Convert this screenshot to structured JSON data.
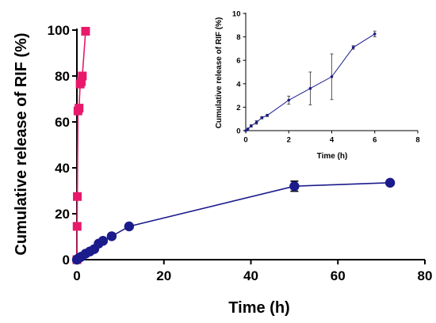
{
  "chart_data": [
    {
      "type": "scatter",
      "xlabel": "Time (h)",
      "ylabel": "Cumulative release of RIF (%)",
      "xlim": [
        0,
        80
      ],
      "ylim": [
        0,
        100
      ],
      "x_ticks": [
        0,
        20,
        40,
        60,
        80
      ],
      "y_ticks": [
        0,
        20,
        40,
        60,
        80,
        100
      ],
      "grid": false,
      "colors": {
        "pink": "#e8196b",
        "navy": "#1b1b8c"
      },
      "series": [
        {
          "marker": "square",
          "color": "#e8196b",
          "points": [
            {
              "x": 0,
              "y": 0
            },
            {
              "x": 0.05,
              "y": 14.5
            },
            {
              "x": 0.1,
              "y": 27.5
            },
            {
              "x": 0.25,
              "y": 64.8
            },
            {
              "x": 0.5,
              "y": 66
            },
            {
              "x": 0.75,
              "y": 76.5
            },
            {
              "x": 1.0,
              "y": 77.5
            },
            {
              "x": 1.25,
              "y": 80
            },
            {
              "x": 2.0,
              "y": 99.5
            }
          ]
        },
        {
          "marker": "circle",
          "color": "#1b1b8c",
          "points": [
            {
              "x": 0,
              "y": 0,
              "err": 0
            },
            {
              "x": 0.25,
              "y": 0.4,
              "err": 0
            },
            {
              "x": 0.5,
              "y": 0.7,
              "err": 0
            },
            {
              "x": 1,
              "y": 1.3,
              "err": 0
            },
            {
              "x": 2,
              "y": 2.6,
              "err": 0
            },
            {
              "x": 3,
              "y": 3.6,
              "err": 0
            },
            {
              "x": 4,
              "y": 4.6,
              "err": 0
            },
            {
              "x": 5,
              "y": 7.0,
              "err": 0
            },
            {
              "x": 6,
              "y": 8.2,
              "err": 0
            },
            {
              "x": 8,
              "y": 10.2,
              "err": 0
            },
            {
              "x": 12,
              "y": 14.5,
              "err": 0
            },
            {
              "x": 50,
              "y": 32,
              "err": 2.2
            },
            {
              "x": 72,
              "y": 33.5,
              "err": 0
            }
          ]
        }
      ]
    },
    {
      "type": "line",
      "inset": true,
      "xlabel": "Time (h)",
      "ylabel": "Cumulative release of RIF (%)",
      "xlim": [
        0,
        8
      ],
      "ylim": [
        0,
        10
      ],
      "x_ticks": [
        0,
        2,
        4,
        6,
        8
      ],
      "y_ticks": [
        0,
        2,
        4,
        6,
        8,
        10
      ],
      "grid": false,
      "series": [
        {
          "marker": "circle",
          "color": "#1b1b8c",
          "points": [
            {
              "x": 0,
              "y": 0,
              "err": 0
            },
            {
              "x": 0.1,
              "y": 0.15,
              "err": 0
            },
            {
              "x": 0.25,
              "y": 0.4,
              "err": 0.1
            },
            {
              "x": 0.5,
              "y": 0.7,
              "err": 0.15
            },
            {
              "x": 0.75,
              "y": 1.1,
              "err": 0.1
            },
            {
              "x": 1,
              "y": 1.3,
              "err": 0.1
            },
            {
              "x": 2,
              "y": 2.6,
              "err": 0.35
            },
            {
              "x": 3,
              "y": 3.6,
              "err": 1.4
            },
            {
              "x": 4,
              "y": 4.6,
              "err": 1.95
            },
            {
              "x": 5,
              "y": 7.1,
              "err": 0.15
            },
            {
              "x": 6,
              "y": 8.25,
              "err": 0.25
            }
          ]
        }
      ]
    }
  ]
}
